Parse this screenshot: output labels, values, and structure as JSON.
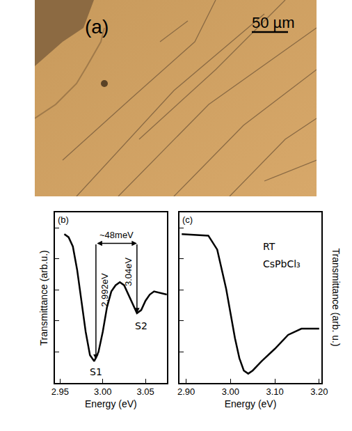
{
  "image_panel": {
    "label": "(a)",
    "scale_bar": "50 µm"
  },
  "chart_data": [
    {
      "type": "line",
      "panel": "(b)",
      "xlabel": "Energy (eV)",
      "ylabel": "Transmittance (arb.u.)",
      "x": [
        2.955,
        2.96,
        2.965,
        2.97,
        2.975,
        2.98,
        2.985,
        2.99,
        2.995,
        3.0,
        3.005,
        3.01,
        3.015,
        3.02,
        3.025,
        3.03,
        3.035,
        3.04,
        3.045,
        3.05,
        3.055,
        3.06,
        3.075
      ],
      "series": [
        {
          "name": "CsPbCl₃",
          "color": "#000000",
          "values": [
            0.96,
            0.94,
            0.88,
            0.73,
            0.53,
            0.33,
            0.18,
            0.14,
            0.2,
            0.33,
            0.49,
            0.59,
            0.63,
            0.65,
            0.63,
            0.57,
            0.51,
            0.45,
            0.47,
            0.53,
            0.57,
            0.59,
            0.57
          ]
        }
      ],
      "xlim": [
        2.944,
        3.075
      ],
      "xticks": [
        2.95,
        {
          "value": 3,
          "label": "3.00"
        },
        3.05
      ],
      "ylim": [
        0,
        1.1
      ],
      "yticks": [
        0.2,
        0.4,
        0.6,
        0.8,
        1
      ],
      "tick_labels": "x",
      "grid": false,
      "bracket": {
        "text": "~48meV",
        "x0": 2.992,
        "x1": 3.04,
        "y": 0.9
      },
      "arrows": [
        {
          "text": "2.992eV",
          "x": 2.992,
          "y": 0.15
        },
        {
          "text": "3.04eV",
          "x": 3.04,
          "y": 0.45
        }
      ],
      "annotations": [
        {
          "text": "S1",
          "x": 2.992,
          "y": 0.07
        },
        {
          "text": "S2",
          "x": 3.045,
          "y": 0.37
        }
      ]
    },
    {
      "type": "line",
      "panel": "(c)",
      "xlabel": "Energy (eV)",
      "ylabel": "Transmittance (arb. u.)",
      "x": [
        2.89,
        2.95,
        2.97,
        2.99,
        3.0,
        3.01,
        3.02,
        3.03,
        3.04,
        3.05,
        3.07,
        3.1,
        3.13,
        3.16,
        3.2
      ],
      "series": [
        {
          "name": "CsPbCl₃",
          "color": "#000000",
          "values": [
            0.96,
            0.95,
            0.86,
            0.61,
            0.45,
            0.29,
            0.16,
            0.08,
            0.06,
            0.08,
            0.14,
            0.22,
            0.31,
            0.35,
            0.35
          ]
        }
      ],
      "xlim": [
        2.885,
        3.205
      ],
      "xticks": [
        {
          "value": 2.9,
          "label": "2.90"
        },
        {
          "value": 3,
          "label": "3.00"
        },
        {
          "value": 3.1,
          "label": "3.10"
        },
        {
          "value": 3.2,
          "label": "3.20"
        }
      ],
      "ylim": [
        0,
        1.1
      ],
      "yticks": [
        0.2,
        0.4,
        0.6,
        0.8,
        1
      ],
      "tick_labels": "x",
      "grid": false,
      "annotations": [
        {
          "text": "RT",
          "x": 3.07,
          "y": 0.88
        },
        {
          "text": "CsPbCl₃",
          "x": 3.07,
          "y": 0.77
        }
      ]
    }
  ]
}
